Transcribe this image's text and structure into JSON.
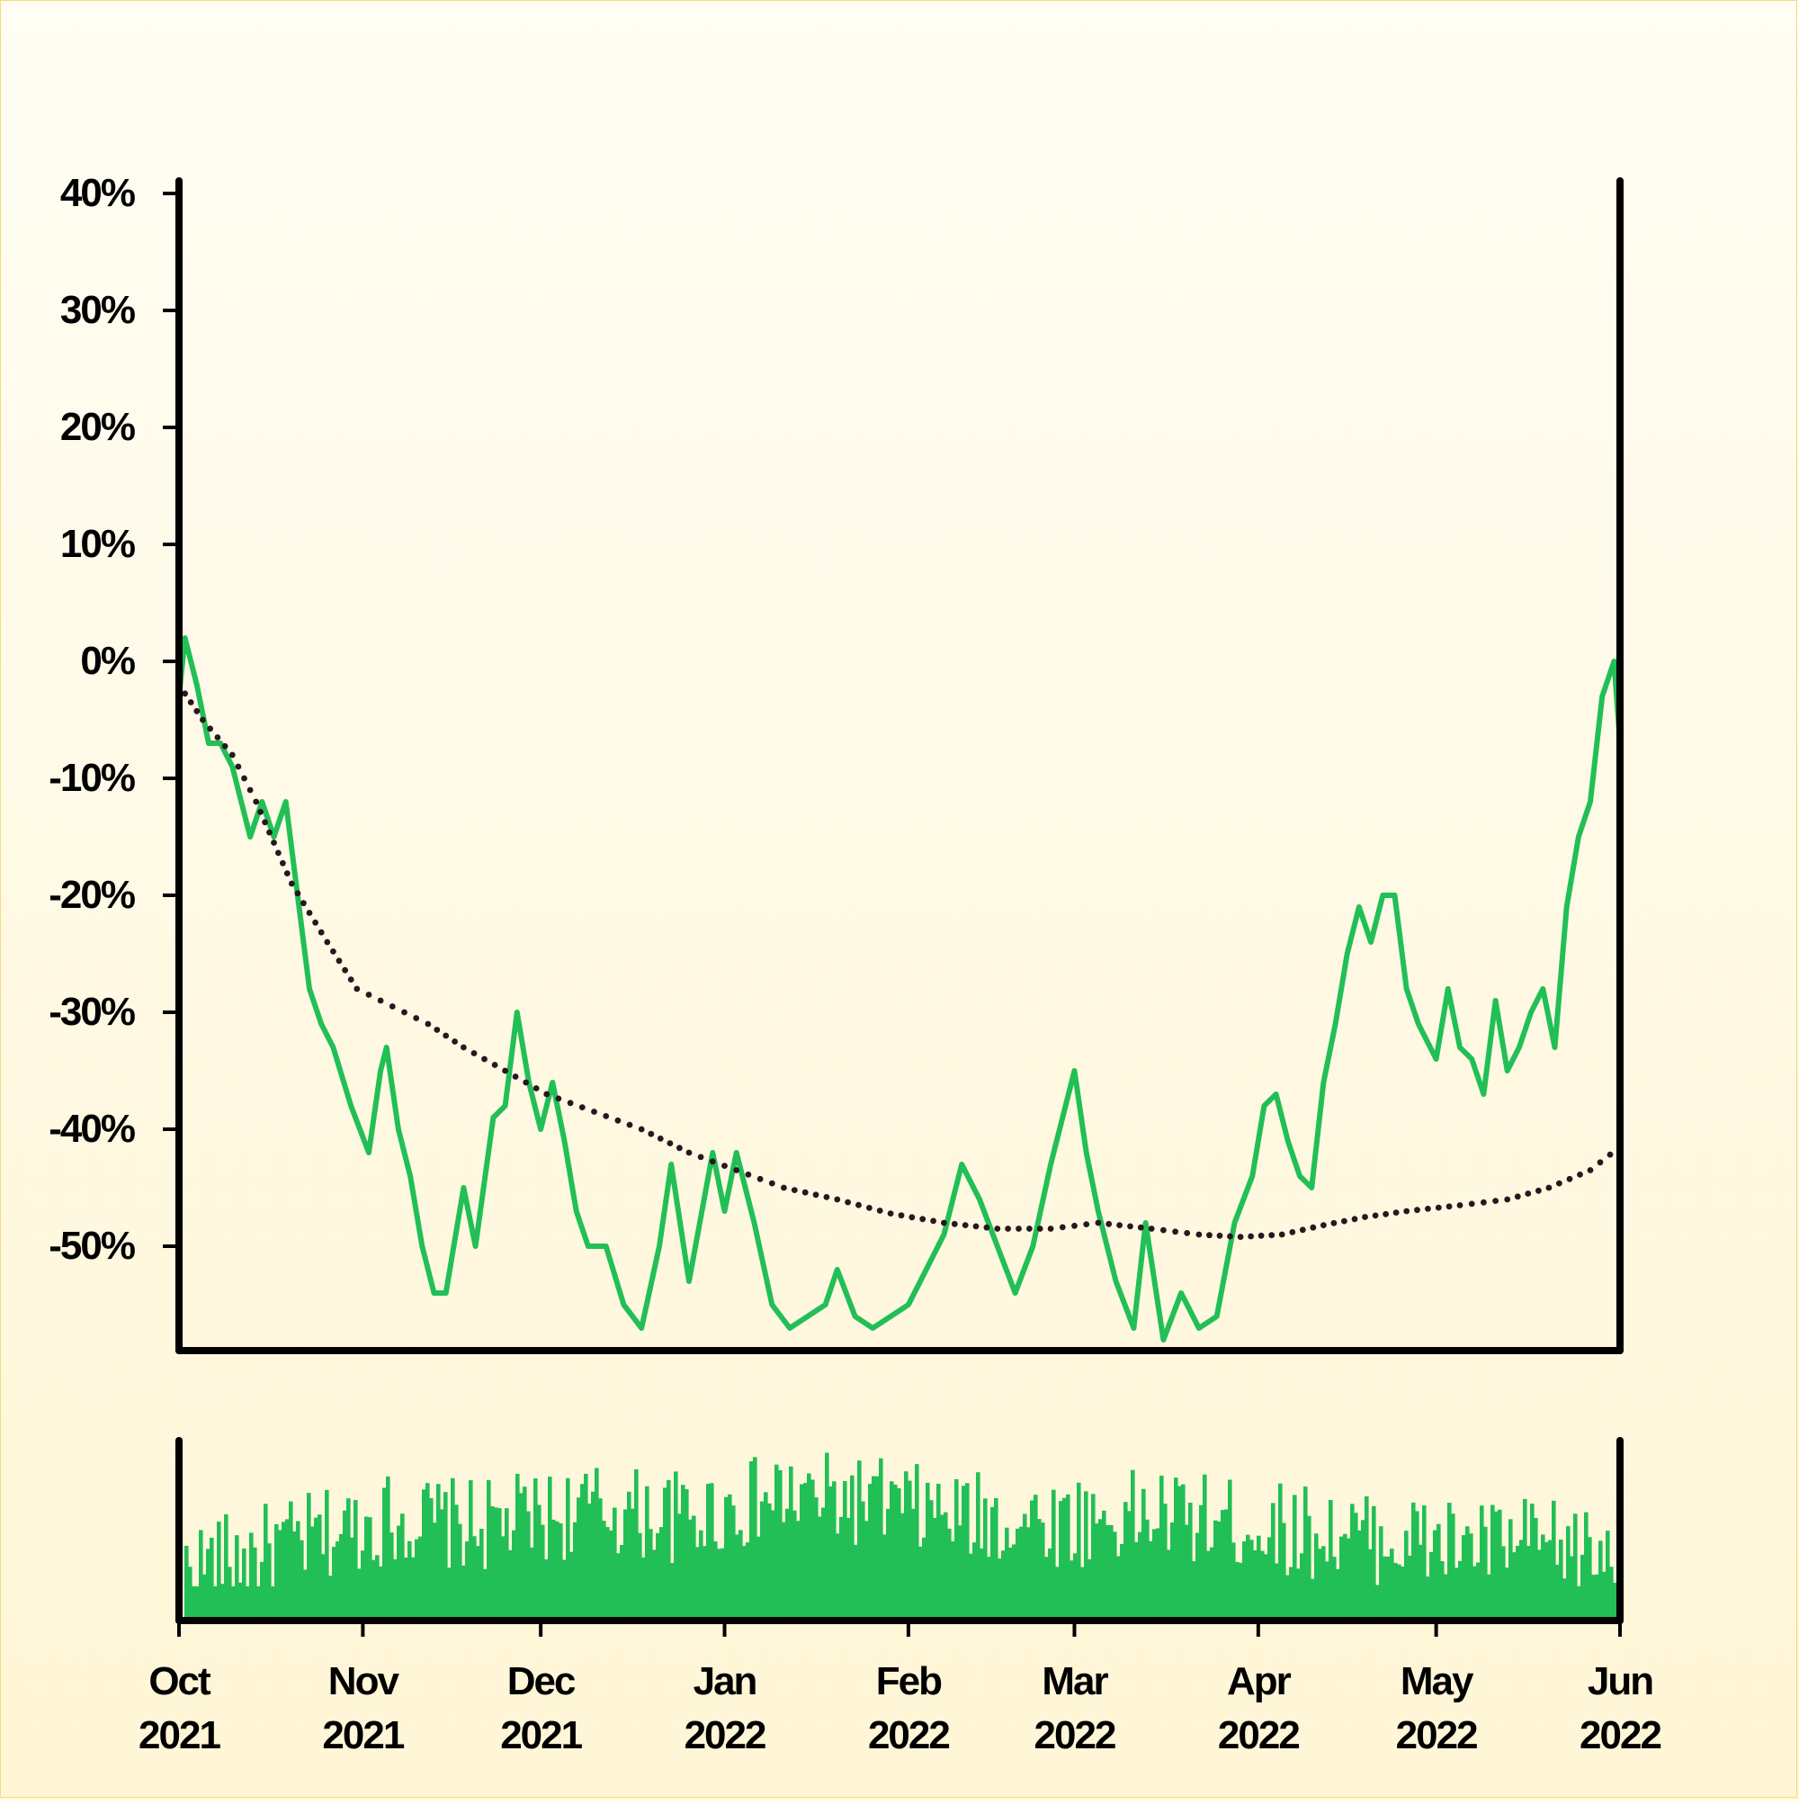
{
  "chart_data": [
    {
      "type": "line",
      "title": "",
      "xlabel": "",
      "ylabel": "",
      "y_ticks": [
        "40%",
        "30%",
        "20%",
        "10%",
        "0%",
        "-10%",
        "-20%",
        "-30%",
        "-40%",
        "-50%"
      ],
      "ylim": [
        -58,
        41
      ],
      "xlim": [
        "2021-10-01",
        "2022-06-01"
      ],
      "grid": false,
      "legend": "none",
      "colors": {
        "price": "#22bf57",
        "moving_average": "#2a1620"
      },
      "series": [
        {
          "style": "solid",
          "points": [
            [
              "2021-10-01",
              -3
            ],
            [
              "2021-10-02",
              2
            ],
            [
              "2021-10-04",
              -2
            ],
            [
              "2021-10-06",
              -7
            ],
            [
              "2021-10-08",
              -7
            ],
            [
              "2021-10-10",
              -9
            ],
            [
              "2021-10-13",
              -15
            ],
            [
              "2021-10-15",
              -12
            ],
            [
              "2021-10-17",
              -15
            ],
            [
              "2021-10-19",
              -12
            ],
            [
              "2021-10-23",
              -28
            ],
            [
              "2021-10-25",
              -31
            ],
            [
              "2021-10-27",
              -33
            ],
            [
              "2021-10-30",
              -38
            ],
            [
              "2021-11-02",
              -42
            ],
            [
              "2021-11-04",
              -35
            ],
            [
              "2021-11-05",
              -33
            ],
            [
              "2021-11-07",
              -40
            ],
            [
              "2021-11-09",
              -44
            ],
            [
              "2021-11-11",
              -50
            ],
            [
              "2021-11-13",
              -54
            ],
            [
              "2021-11-15",
              -54
            ],
            [
              "2021-11-18",
              -45
            ],
            [
              "2021-11-20",
              -50
            ],
            [
              "2021-11-23",
              -39
            ],
            [
              "2021-11-25",
              -38
            ],
            [
              "2021-11-27",
              -30
            ],
            [
              "2021-11-29",
              -36
            ],
            [
              "2021-12-01",
              -40
            ],
            [
              "2021-12-03",
              -36
            ],
            [
              "2021-12-05",
              -41
            ],
            [
              "2021-12-07",
              -47
            ],
            [
              "2021-12-09",
              -50
            ],
            [
              "2021-12-12",
              -50
            ],
            [
              "2021-12-15",
              -55
            ],
            [
              "2021-12-18",
              -57
            ],
            [
              "2021-12-21",
              -50
            ],
            [
              "2021-12-23",
              -43
            ],
            [
              "2021-12-26",
              -53
            ],
            [
              "2021-12-30",
              -42
            ],
            [
              "2022-01-01",
              -47
            ],
            [
              "2022-01-03",
              -42
            ],
            [
              "2022-01-06",
              -48
            ],
            [
              "2022-01-09",
              -55
            ],
            [
              "2022-01-12",
              -57
            ],
            [
              "2022-01-15",
              -56
            ],
            [
              "2022-01-18",
              -55
            ],
            [
              "2022-01-20",
              -52
            ],
            [
              "2022-01-23",
              -56
            ],
            [
              "2022-01-26",
              -57
            ],
            [
              "2022-01-29",
              -56
            ],
            [
              "2022-02-01",
              -55
            ],
            [
              "2022-02-04",
              -52
            ],
            [
              "2022-02-07",
              -49
            ],
            [
              "2022-02-10",
              -43
            ],
            [
              "2022-02-13",
              -46
            ],
            [
              "2022-02-16",
              -50
            ],
            [
              "2022-02-19",
              -54
            ],
            [
              "2022-02-22",
              -50
            ],
            [
              "2022-02-25",
              -43
            ],
            [
              "2022-02-27",
              -39
            ],
            [
              "2022-03-01",
              -35
            ],
            [
              "2022-03-03",
              -42
            ],
            [
              "2022-03-05",
              -47
            ],
            [
              "2022-03-08",
              -53
            ],
            [
              "2022-03-11",
              -57
            ],
            [
              "2022-03-13",
              -48
            ],
            [
              "2022-03-16",
              -58
            ],
            [
              "2022-03-19",
              -54
            ],
            [
              "2022-03-22",
              -57
            ],
            [
              "2022-03-25",
              -56
            ],
            [
              "2022-03-28",
              -48
            ],
            [
              "2022-03-31",
              -44
            ],
            [
              "2022-04-02",
              -38
            ],
            [
              "2022-04-04",
              -37
            ],
            [
              "2022-04-06",
              -41
            ],
            [
              "2022-04-08",
              -44
            ],
            [
              "2022-04-10",
              -45
            ],
            [
              "2022-04-12",
              -36
            ],
            [
              "2022-04-14",
              -31
            ],
            [
              "2022-04-16",
              -25
            ],
            [
              "2022-04-18",
              -21
            ],
            [
              "2022-04-20",
              -24
            ],
            [
              "2022-04-22",
              -20
            ],
            [
              "2022-04-24",
              -20
            ],
            [
              "2022-04-26",
              -28
            ],
            [
              "2022-04-28",
              -31
            ],
            [
              "2022-05-01",
              -34
            ],
            [
              "2022-05-03",
              -28
            ],
            [
              "2022-05-05",
              -33
            ],
            [
              "2022-05-07",
              -34
            ],
            [
              "2022-05-09",
              -37
            ],
            [
              "2022-05-11",
              -29
            ],
            [
              "2022-05-13",
              -35
            ],
            [
              "2022-05-15",
              -33
            ],
            [
              "2022-05-17",
              -30
            ],
            [
              "2022-05-19",
              -28
            ],
            [
              "2022-05-21",
              -33
            ],
            [
              "2022-05-23",
              -21
            ],
            [
              "2022-05-25",
              -15
            ],
            [
              "2022-05-27",
              -12
            ],
            [
              "2022-05-29",
              -3
            ],
            [
              "2022-05-31",
              0
            ],
            [
              "2022-06-01",
              -7
            ]
          ]
        },
        {
          "style": "dotted",
          "points": [
            [
              "2021-10-01",
              -2
            ],
            [
              "2021-10-05",
              -5
            ],
            [
              "2021-10-10",
              -8
            ],
            [
              "2021-10-14",
              -12
            ],
            [
              "2021-10-20",
              -19
            ],
            [
              "2021-10-26",
              -24
            ],
            [
              "2021-10-31",
              -28
            ],
            [
              "2021-11-06",
              -29.5
            ],
            [
              "2021-11-12",
              -31
            ],
            [
              "2021-11-18",
              -33
            ],
            [
              "2021-11-25",
              -35
            ],
            [
              "2021-12-02",
              -37
            ],
            [
              "2021-12-10",
              -38.5
            ],
            [
              "2021-12-18",
              -40
            ],
            [
              "2021-12-26",
              -42
            ],
            [
              "2022-01-03",
              -43.5
            ],
            [
              "2022-01-11",
              -45
            ],
            [
              "2022-01-20",
              -46
            ],
            [
              "2022-01-29",
              -47.2
            ],
            [
              "2022-02-07",
              -48
            ],
            [
              "2022-02-16",
              -48.5
            ],
            [
              "2022-02-25",
              -48.5
            ],
            [
              "2022-03-05",
              -48
            ],
            [
              "2022-03-14",
              -48.5
            ],
            [
              "2022-03-22",
              -49
            ],
            [
              "2022-03-29",
              -49.2
            ],
            [
              "2022-04-05",
              -49
            ],
            [
              "2022-04-12",
              -48.2
            ],
            [
              "2022-04-19",
              -47.5
            ],
            [
              "2022-04-26",
              -47
            ],
            [
              "2022-05-05",
              -46.5
            ],
            [
              "2022-05-13",
              -46
            ],
            [
              "2022-05-20",
              -45
            ],
            [
              "2022-05-27",
              -43.5
            ],
            [
              "2022-06-01",
              -41.5
            ]
          ]
        }
      ]
    },
    {
      "type": "bar",
      "title": "",
      "x_ticks": [
        {
          "date": "2021-10-01",
          "month": "Oct",
          "year": "2021"
        },
        {
          "date": "2021-11-01",
          "month": "Nov",
          "year": "2021"
        },
        {
          "date": "2021-12-01",
          "month": "Dec",
          "year": "2021"
        },
        {
          "date": "2022-01-01",
          "month": "Jan",
          "year": "2022"
        },
        {
          "date": "2022-02-01",
          "month": "Feb",
          "year": "2022"
        },
        {
          "date": "2022-03-01",
          "month": "Mar",
          "year": "2022"
        },
        {
          "date": "2022-04-01",
          "month": "Apr",
          "year": "2022"
        },
        {
          "date": "2022-05-01",
          "month": "May",
          "year": "2022"
        },
        {
          "date": "2022-06-01",
          "month": "Jun",
          "year": "2022"
        }
      ],
      "bar_color": "#22bf57",
      "volume_profile": {
        "dates": [
          "2021-10-01",
          "2021-10-20",
          "2021-11-05",
          "2021-11-20",
          "2021-12-10",
          "2021-12-25",
          "2022-01-10",
          "2022-01-25",
          "2022-02-10",
          "2022-03-01",
          "2022-03-15",
          "2022-04-01",
          "2022-04-15",
          "2022-05-01",
          "2022-05-15",
          "2022-06-01"
        ],
        "levels": [
          0.3,
          0.45,
          0.6,
          0.55,
          0.65,
          0.6,
          0.72,
          0.7,
          0.6,
          0.58,
          0.62,
          0.55,
          0.5,
          0.45,
          0.45,
          0.38
        ]
      }
    }
  ]
}
